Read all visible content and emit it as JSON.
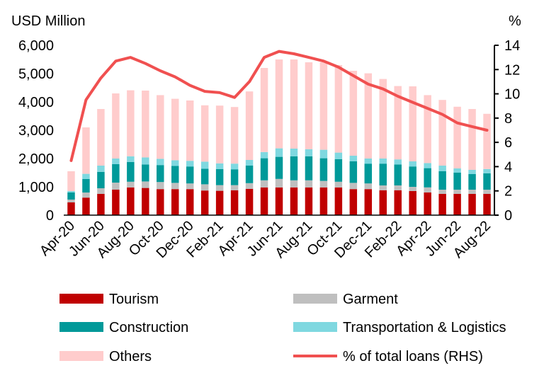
{
  "chart_data": {
    "type": "bar",
    "stacked": true,
    "categories": [
      "Apr-20",
      "May-20",
      "Jun-20",
      "Jul-20",
      "Aug-20",
      "Sep-20",
      "Oct-20",
      "Nov-20",
      "Dec-20",
      "Jan-21",
      "Feb-21",
      "Mar-21",
      "Apr-21",
      "May-21",
      "Jun-21",
      "Jul-21",
      "Aug-21",
      "Sep-21",
      "Oct-21",
      "Nov-21",
      "Dec-21",
      "Jan-22",
      "Feb-22",
      "Mar-22",
      "Apr-22",
      "May-22",
      "Jun-22",
      "Jul-22",
      "Aug-22"
    ],
    "tick_labels": [
      "Apr-20",
      "Jun-20",
      "Aug-20",
      "Oct-20",
      "Dec-20",
      "Feb-21",
      "Apr-21",
      "Jun-21",
      "Aug-21",
      "Oct-21",
      "Dec-21",
      "Feb-22",
      "Apr-22",
      "Jun-22",
      "Aug-22"
    ],
    "left_axis": {
      "unit_label": "USD Million",
      "ylim": [
        0,
        6000
      ],
      "ticks": [
        "0",
        "1,000",
        "2,000",
        "3,000",
        "4,000",
        "5,000",
        "6,000"
      ]
    },
    "right_axis": {
      "unit_label": "%",
      "ylim": [
        0,
        14
      ],
      "ticks": [
        "0",
        "2",
        "4",
        "6",
        "8",
        "10",
        "12",
        "14"
      ]
    },
    "series": [
      {
        "name": "Tourism",
        "color": "#c00000",
        "axis": "left",
        "values": [
          450,
          620,
          750,
          900,
          980,
          960,
          920,
          920,
          920,
          870,
          860,
          880,
          930,
          980,
          980,
          980,
          980,
          980,
          980,
          920,
          920,
          880,
          880,
          850,
          800,
          750,
          750,
          750,
          750
        ]
      },
      {
        "name": "Garment",
        "color": "#bfbfbf",
        "axis": "left",
        "values": [
          100,
          180,
          200,
          250,
          200,
          230,
          250,
          220,
          200,
          220,
          200,
          180,
          200,
          250,
          300,
          250,
          250,
          230,
          200,
          220,
          200,
          170,
          170,
          150,
          180,
          150,
          150,
          150,
          150
        ]
      },
      {
        "name": "Construction",
        "color": "#009999",
        "axis": "left",
        "values": [
          250,
          480,
          580,
          650,
          700,
          600,
          600,
          600,
          600,
          550,
          570,
          560,
          620,
          780,
          780,
          850,
          850,
          800,
          800,
          760,
          700,
          770,
          740,
          720,
          680,
          650,
          600,
          550,
          580
        ]
      },
      {
        "name": "Transportation & Logistics",
        "color": "#7fd8e0",
        "axis": "left",
        "values": [
          50,
          180,
          220,
          200,
          200,
          250,
          220,
          200,
          200,
          250,
          200,
          200,
          200,
          220,
          300,
          270,
          250,
          300,
          230,
          200,
          180,
          180,
          180,
          180,
          180,
          200,
          150,
          150,
          150
        ]
      },
      {
        "name": "Others",
        "color": "#ffcccc",
        "axis": "left",
        "values": [
          700,
          1640,
          2000,
          2300,
          2330,
          2360,
          2250,
          2170,
          2130,
          1990,
          2040,
          2000,
          2420,
          2970,
          3140,
          3150,
          3070,
          3090,
          3090,
          3000,
          3010,
          2810,
          2590,
          2650,
          2400,
          2320,
          2180,
          2150,
          1950
        ]
      },
      {
        "name": "% of total loans (RHS)",
        "color": "#f05050",
        "axis": "right",
        "type": "line",
        "values": [
          4.5,
          9.5,
          11.3,
          12.7,
          13.0,
          12.5,
          11.9,
          11.4,
          10.7,
          10.2,
          10.1,
          9.7,
          11.0,
          13.0,
          13.5,
          13.3,
          13.0,
          12.7,
          12.2,
          11.5,
          10.8,
          10.4,
          9.8,
          9.3,
          8.8,
          8.3,
          7.6,
          7.3,
          7.0
        ]
      }
    ],
    "legend": {
      "placement": "bottom",
      "columns": 2
    }
  }
}
